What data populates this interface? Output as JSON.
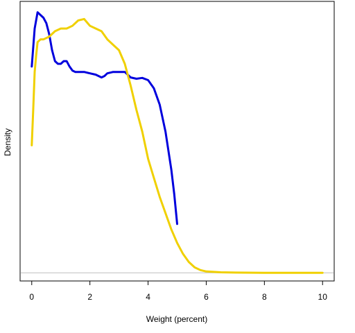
{
  "chart_data": {
    "type": "line",
    "title": "",
    "xlabel": "Weight (percent)",
    "ylabel": "Density",
    "xlim": [
      -0.4,
      10.4
    ],
    "ylim": [
      -0.03,
      1.0
    ],
    "x_ticks": [
      "0",
      "2",
      "4",
      "6",
      "8",
      "10"
    ],
    "y_ticks_shown": false,
    "grid": false,
    "legend": "none",
    "baseline": {
      "y": 0,
      "color": "#bebebe"
    },
    "series": [
      {
        "color": "#0000dd",
        "x": [
          0,
          0.1,
          0.2,
          0.3,
          0.4,
          0.5,
          0.6,
          0.7,
          0.8,
          0.9,
          1.0,
          1.1,
          1.2,
          1.3,
          1.4,
          1.5,
          1.6,
          1.8,
          2.0,
          2.2,
          2.4,
          2.5,
          2.6,
          2.8,
          3.0,
          3.2,
          3.4,
          3.6,
          3.8,
          4.0,
          4.2,
          4.4,
          4.6,
          4.8,
          4.9,
          5.0
        ],
        "y": [
          0.76,
          0.9,
          0.96,
          0.95,
          0.94,
          0.92,
          0.88,
          0.82,
          0.78,
          0.77,
          0.77,
          0.78,
          0.78,
          0.76,
          0.745,
          0.74,
          0.74,
          0.74,
          0.735,
          0.73,
          0.72,
          0.725,
          0.735,
          0.74,
          0.74,
          0.74,
          0.72,
          0.715,
          0.718,
          0.71,
          0.68,
          0.62,
          0.52,
          0.38,
          0.29,
          0.18
        ]
      },
      {
        "color": "#f0d000",
        "x": [
          0,
          0.05,
          0.1,
          0.15,
          0.2,
          0.3,
          0.4,
          0.6,
          0.8,
          1.0,
          1.2,
          1.4,
          1.6,
          1.8,
          2.0,
          2.2,
          2.4,
          2.6,
          2.8,
          3.0,
          3.2,
          3.4,
          3.6,
          3.8,
          4.0,
          4.2,
          4.4,
          4.6,
          4.8,
          5.0,
          5.2,
          5.4,
          5.6,
          5.8,
          6.0,
          6.5,
          7.0,
          8.0,
          9.0,
          10.0
        ],
        "y": [
          0.47,
          0.6,
          0.74,
          0.8,
          0.85,
          0.86,
          0.86,
          0.87,
          0.89,
          0.9,
          0.9,
          0.91,
          0.93,
          0.935,
          0.91,
          0.9,
          0.89,
          0.86,
          0.84,
          0.82,
          0.77,
          0.69,
          0.6,
          0.52,
          0.42,
          0.35,
          0.28,
          0.22,
          0.16,
          0.11,
          0.07,
          0.04,
          0.02,
          0.01,
          0.005,
          0.002,
          0.001,
          0.0,
          0.0,
          0.0
        ]
      }
    ]
  }
}
